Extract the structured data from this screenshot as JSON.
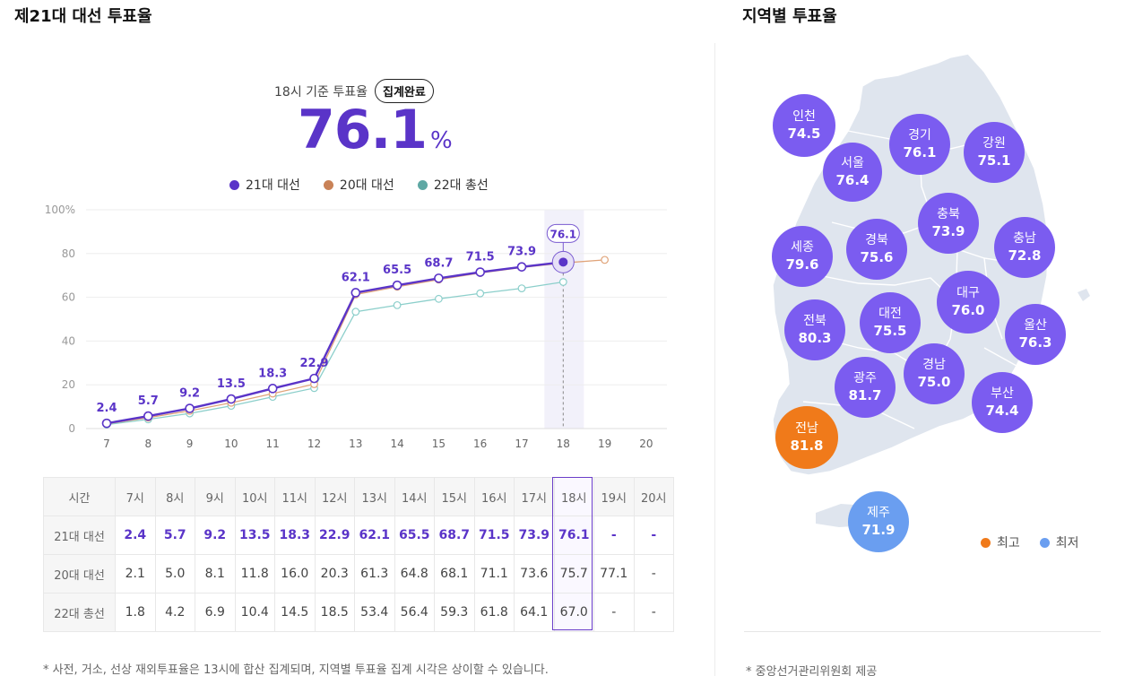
{
  "left_title": "제21대 대선 투표율",
  "right_title": "지역별 투표율",
  "summary": {
    "label": "18시 기준 투표율",
    "badge": "집계완료",
    "value": "76.1",
    "unit": "%"
  },
  "legend": [
    {
      "name": "21대 대선",
      "color": "#5a34c8"
    },
    {
      "name": "20대 대선",
      "color": "#d08a5c"
    },
    {
      "name": "22대 총선",
      "color": "#5fa8a4"
    }
  ],
  "chart_data": {
    "type": "line",
    "x": [
      7,
      8,
      9,
      10,
      11,
      12,
      13,
      14,
      15,
      16,
      17,
      18,
      19,
      20
    ],
    "ytick_labels": [
      "100%",
      "80",
      "60",
      "40",
      "20",
      "0"
    ],
    "ylim": [
      0,
      100
    ],
    "highlight_x": 18,
    "series": [
      {
        "name": "21대 대선",
        "color": "#5a34c8",
        "values": [
          2.4,
          5.7,
          9.2,
          13.5,
          18.3,
          22.9,
          62.1,
          65.5,
          68.7,
          71.5,
          73.9,
          76.1,
          null,
          null
        ]
      },
      {
        "name": "20대 대선",
        "color": "#e0a47a",
        "values": [
          2.1,
          5.0,
          8.1,
          11.8,
          16.0,
          20.3,
          61.3,
          64.8,
          68.1,
          71.1,
          73.6,
          75.7,
          77.1,
          null
        ]
      },
      {
        "name": "22대 총선",
        "color": "#8ccfcb",
        "values": [
          1.8,
          4.2,
          6.9,
          10.4,
          14.5,
          18.5,
          53.4,
          56.4,
          59.3,
          61.8,
          64.1,
          67.0,
          null,
          null
        ]
      }
    ]
  },
  "table": {
    "corner": "시간",
    "headers": [
      "7시",
      "8시",
      "9시",
      "10시",
      "11시",
      "12시",
      "13시",
      "14시",
      "15시",
      "16시",
      "17시",
      "18시",
      "19시",
      "20시"
    ],
    "rows": [
      {
        "label": "21대 대선",
        "values": [
          "2.4",
          "5.7",
          "9.2",
          "13.5",
          "18.3",
          "22.9",
          "62.1",
          "65.5",
          "68.7",
          "71.5",
          "73.9",
          "76.1",
          "-",
          "-"
        ]
      },
      {
        "label": "20대 대선",
        "values": [
          "2.1",
          "5.0",
          "8.1",
          "11.8",
          "16.0",
          "20.3",
          "61.3",
          "64.8",
          "68.1",
          "71.1",
          "73.6",
          "75.7",
          "77.1",
          "-"
        ]
      },
      {
        "label": "22대 총선",
        "values": [
          "1.8",
          "4.2",
          "6.9",
          "10.4",
          "14.5",
          "18.5",
          "53.4",
          "56.4",
          "59.3",
          "61.8",
          "64.1",
          "67.0",
          "-",
          "-"
        ]
      }
    ]
  },
  "footnote": "* 사전, 거소, 선상 재외투표율은 13시에 합산 집계되며, 지역별 투표율 집계 시각은 상이할 수 있습니다.",
  "regions": [
    {
      "name": "인천",
      "value": "74.5",
      "type": "normal"
    },
    {
      "name": "경기",
      "value": "76.1",
      "type": "normal"
    },
    {
      "name": "강원",
      "value": "75.1",
      "type": "normal"
    },
    {
      "name": "서울",
      "value": "76.4",
      "type": "normal"
    },
    {
      "name": "충북",
      "value": "73.9",
      "type": "normal"
    },
    {
      "name": "충남",
      "value": "72.8",
      "type": "normal"
    },
    {
      "name": "세종",
      "value": "79.6",
      "type": "normal"
    },
    {
      "name": "경북",
      "value": "75.6",
      "type": "normal"
    },
    {
      "name": "대구",
      "value": "76.0",
      "type": "normal"
    },
    {
      "name": "전북",
      "value": "80.3",
      "type": "normal"
    },
    {
      "name": "대전",
      "value": "75.5",
      "type": "normal"
    },
    {
      "name": "울산",
      "value": "76.3",
      "type": "normal"
    },
    {
      "name": "경남",
      "value": "75.0",
      "type": "normal"
    },
    {
      "name": "광주",
      "value": "81.7",
      "type": "normal"
    },
    {
      "name": "부산",
      "value": "74.4",
      "type": "normal"
    },
    {
      "name": "전남",
      "value": "81.8",
      "type": "highest"
    },
    {
      "name": "제주",
      "value": "71.9",
      "type": "lowest"
    }
  ],
  "region_colors": {
    "normal": "#7b5cf0",
    "highest": "#f07a1a",
    "lowest": "#6a9ef0"
  },
  "map_legend": [
    {
      "label": "최고",
      "color": "#f07a1a"
    },
    {
      "label": "최저",
      "color": "#6a9ef0"
    }
  ],
  "source": "* 중앙선거관리위원회 제공"
}
